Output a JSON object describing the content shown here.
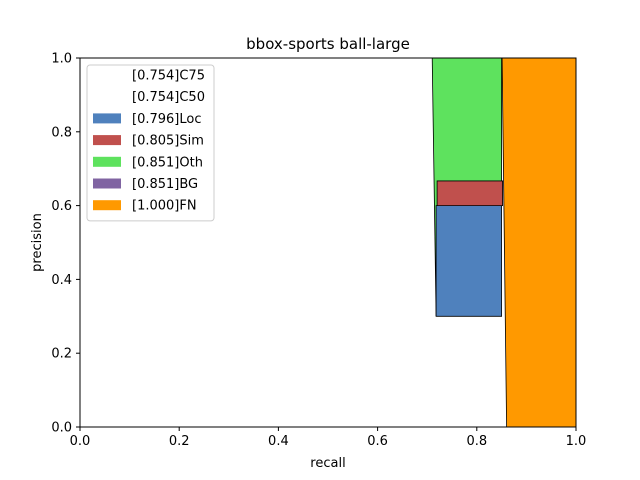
{
  "chart_data": {
    "type": "area",
    "title": "bbox-sports ball-large",
    "xlabel": "recall",
    "ylabel": "precision",
    "xlim": [
      0,
      1
    ],
    "ylim": [
      0,
      1
    ],
    "xticks": [
      "0.0",
      "0.2",
      "0.4",
      "0.6",
      "0.8",
      "1.0"
    ],
    "yticks": [
      "0.0",
      "0.2",
      "0.4",
      "0.6",
      "0.8",
      "1.0"
    ],
    "grid": false,
    "legend_position": "top-left",
    "series": [
      {
        "name": "[0.754]C75",
        "color": "#ffffff",
        "points": [
          [
            0,
            0
          ],
          [
            0.71,
            0
          ],
          [
            0.71,
            1
          ],
          [
            0,
            1
          ]
        ]
      },
      {
        "name": "[0.754]C50",
        "color": "#ffffff",
        "points": [
          [
            0,
            0
          ],
          [
            0.71,
            0
          ],
          [
            0.71,
            1
          ],
          [
            0,
            1
          ]
        ]
      },
      {
        "name": "[0.796]Loc",
        "color": "#4f81bd",
        "points": [
          [
            0.718,
            0.3
          ],
          [
            0.85,
            0.3
          ],
          [
            0.85,
            0.6
          ],
          [
            0.718,
            0.6
          ]
        ]
      },
      {
        "name": "[0.805]Sim",
        "color": "#c0504d",
        "points": [
          [
            0.72,
            0.6
          ],
          [
            0.852,
            0.6
          ],
          [
            0.852,
            0.667
          ],
          [
            0.72,
            0.667
          ]
        ]
      },
      {
        "name": "[0.851]Oth",
        "color": "#5ee25e",
        "points": [
          [
            0.71,
            1.0
          ],
          [
            0.85,
            1.0
          ],
          [
            0.85,
            0.667
          ],
          [
            0.72,
            0.667
          ],
          [
            0.72,
            0.6
          ],
          [
            0.718,
            0.6
          ],
          [
            0.718,
            0.3
          ]
        ]
      },
      {
        "name": "[0.851]BG",
        "color": "#8064a2",
        "points": []
      },
      {
        "name": "[1.000]FN",
        "color": "#ff9900",
        "points": [
          [
            0.851,
            1.0
          ],
          [
            1.0,
            1.0
          ],
          [
            1.0,
            0.0
          ],
          [
            0.86,
            0.0
          ]
        ]
      }
    ]
  }
}
